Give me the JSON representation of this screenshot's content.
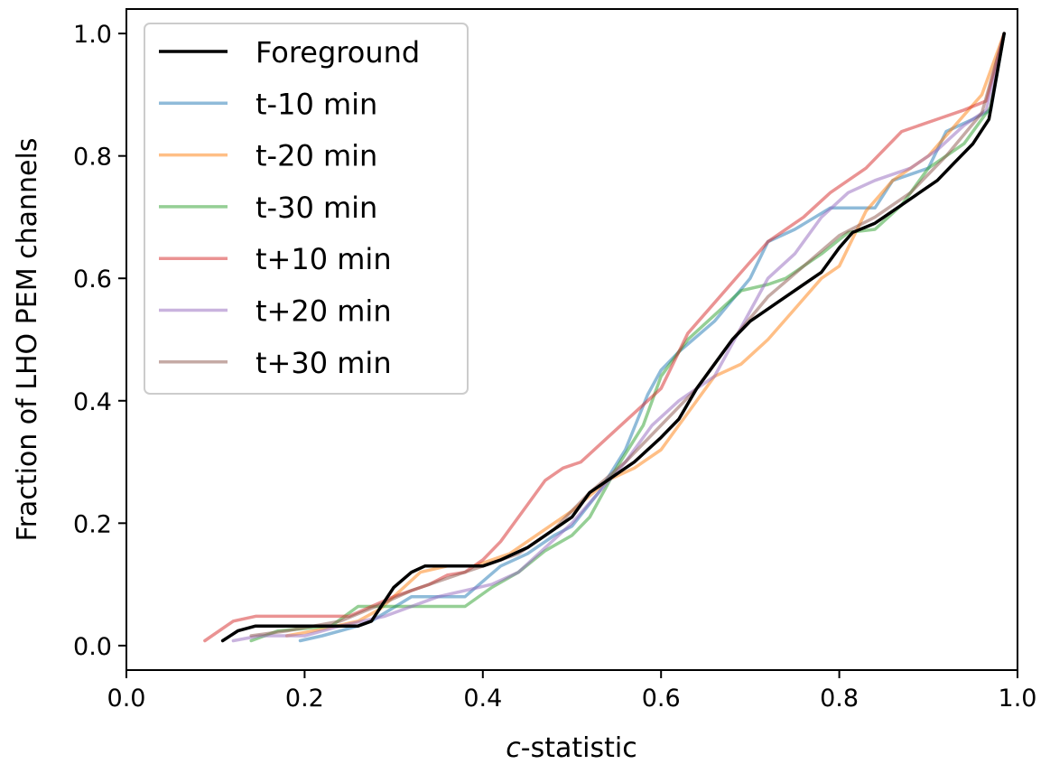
{
  "chart_data": {
    "type": "line",
    "title": "",
    "xlabel_italic": "c",
    "xlabel_rest": "-statistic",
    "ylabel": "Fraction of LHO PEM channels",
    "xlim": [
      0.0,
      1.0
    ],
    "ylim": [
      -0.04,
      1.04
    ],
    "xticks": [
      "0.0",
      "0.2",
      "0.4",
      "0.6",
      "0.8",
      "1.0"
    ],
    "yticks": [
      "0.0",
      "0.2",
      "0.4",
      "0.6",
      "0.8",
      "1.0"
    ],
    "grid": false,
    "legend_position": "top-left",
    "series": [
      {
        "name": "t-10 min",
        "color": "#1f77b4",
        "opacity": 0.5,
        "x": [
          0.195,
          0.22,
          0.26,
          0.275,
          0.32,
          0.38,
          0.42,
          0.45,
          0.48,
          0.5,
          0.53,
          0.56,
          0.585,
          0.6,
          0.62,
          0.66,
          0.7,
          0.72,
          0.75,
          0.79,
          0.84,
          0.86,
          0.9,
          0.92,
          0.95,
          0.97,
          0.985
        ],
        "y": [
          0.008,
          0.016,
          0.032,
          0.04,
          0.08,
          0.08,
          0.13,
          0.15,
          0.18,
          0.195,
          0.25,
          0.32,
          0.41,
          0.45,
          0.48,
          0.53,
          0.6,
          0.66,
          0.68,
          0.715,
          0.715,
          0.76,
          0.78,
          0.84,
          0.86,
          0.875,
          1.0
        ]
      },
      {
        "name": "t-20 min",
        "color": "#ff7f0e",
        "opacity": 0.5,
        "x": [
          0.18,
          0.21,
          0.26,
          0.285,
          0.33,
          0.36,
          0.39,
          0.43,
          0.47,
          0.5,
          0.54,
          0.57,
          0.6,
          0.62,
          0.66,
          0.69,
          0.72,
          0.75,
          0.78,
          0.8,
          0.83,
          0.86,
          0.9,
          0.93,
          0.96,
          0.985
        ],
        "y": [
          0.016,
          0.024,
          0.04,
          0.06,
          0.12,
          0.13,
          0.13,
          0.15,
          0.19,
          0.22,
          0.27,
          0.29,
          0.32,
          0.36,
          0.44,
          0.46,
          0.5,
          0.55,
          0.6,
          0.62,
          0.71,
          0.76,
          0.8,
          0.85,
          0.9,
          1.0
        ]
      },
      {
        "name": "t-30 min",
        "color": "#2ca02c",
        "opacity": 0.5,
        "x": [
          0.14,
          0.17,
          0.23,
          0.26,
          0.29,
          0.32,
          0.38,
          0.41,
          0.44,
          0.47,
          0.5,
          0.52,
          0.55,
          0.58,
          0.6,
          0.63,
          0.66,
          0.69,
          0.72,
          0.74,
          0.78,
          0.81,
          0.84,
          0.87,
          0.9,
          0.94,
          0.97,
          0.985
        ],
        "y": [
          0.008,
          0.024,
          0.032,
          0.064,
          0.064,
          0.064,
          0.064,
          0.095,
          0.12,
          0.155,
          0.18,
          0.21,
          0.29,
          0.36,
          0.44,
          0.5,
          0.54,
          0.58,
          0.59,
          0.6,
          0.64,
          0.675,
          0.68,
          0.72,
          0.78,
          0.82,
          0.88,
          1.0
        ]
      },
      {
        "name": "t+10 min",
        "color": "#d62728",
        "opacity": 0.5,
        "x": [
          0.088,
          0.12,
          0.145,
          0.18,
          0.25,
          0.3,
          0.34,
          0.36,
          0.38,
          0.4,
          0.42,
          0.45,
          0.47,
          0.49,
          0.51,
          0.54,
          0.57,
          0.6,
          0.63,
          0.66,
          0.69,
          0.72,
          0.76,
          0.79,
          0.83,
          0.87,
          0.91,
          0.94,
          0.965,
          0.985
        ],
        "y": [
          0.008,
          0.04,
          0.048,
          0.048,
          0.048,
          0.08,
          0.1,
          0.115,
          0.12,
          0.14,
          0.17,
          0.23,
          0.27,
          0.29,
          0.3,
          0.34,
          0.38,
          0.42,
          0.51,
          0.56,
          0.61,
          0.66,
          0.7,
          0.74,
          0.78,
          0.84,
          0.86,
          0.875,
          0.89,
          1.0
        ]
      },
      {
        "name": "t+20 min",
        "color": "#9467bd",
        "opacity": 0.5,
        "x": [
          0.12,
          0.15,
          0.2,
          0.24,
          0.29,
          0.32,
          0.35,
          0.38,
          0.41,
          0.44,
          0.47,
          0.5,
          0.53,
          0.56,
          0.59,
          0.62,
          0.66,
          0.69,
          0.72,
          0.75,
          0.78,
          0.81,
          0.84,
          0.88,
          0.91,
          0.94,
          0.965,
          0.985
        ],
        "y": [
          0.008,
          0.016,
          0.016,
          0.032,
          0.048,
          0.064,
          0.08,
          0.09,
          0.1,
          0.12,
          0.16,
          0.2,
          0.25,
          0.3,
          0.36,
          0.4,
          0.44,
          0.52,
          0.6,
          0.64,
          0.7,
          0.74,
          0.76,
          0.78,
          0.81,
          0.85,
          0.875,
          1.0
        ]
      },
      {
        "name": "t+30 min",
        "color": "#8c564b",
        "opacity": 0.5,
        "x": [
          0.14,
          0.18,
          0.24,
          0.28,
          0.32,
          0.36,
          0.4,
          0.44,
          0.48,
          0.52,
          0.56,
          0.6,
          0.64,
          0.68,
          0.72,
          0.76,
          0.8,
          0.84,
          0.88,
          0.92,
          0.96,
          0.985
        ],
        "y": [
          0.016,
          0.024,
          0.04,
          0.064,
          0.09,
          0.11,
          0.13,
          0.15,
          0.19,
          0.25,
          0.3,
          0.36,
          0.42,
          0.5,
          0.57,
          0.62,
          0.67,
          0.7,
          0.74,
          0.8,
          0.87,
          1.0
        ]
      },
      {
        "name": "Foreground",
        "color": "#000000",
        "opacity": 1.0,
        "x": [
          0.108,
          0.125,
          0.145,
          0.2,
          0.24,
          0.26,
          0.275,
          0.3,
          0.32,
          0.335,
          0.36,
          0.4,
          0.42,
          0.45,
          0.47,
          0.5,
          0.52,
          0.55,
          0.57,
          0.6,
          0.62,
          0.64,
          0.665,
          0.68,
          0.7,
          0.73,
          0.76,
          0.78,
          0.8,
          0.815,
          0.84,
          0.87,
          0.91,
          0.93,
          0.95,
          0.968,
          0.985
        ],
        "y": [
          0.008,
          0.024,
          0.032,
          0.032,
          0.032,
          0.032,
          0.04,
          0.095,
          0.12,
          0.13,
          0.13,
          0.13,
          0.14,
          0.16,
          0.18,
          0.21,
          0.25,
          0.28,
          0.3,
          0.34,
          0.37,
          0.42,
          0.47,
          0.5,
          0.53,
          0.56,
          0.59,
          0.61,
          0.65,
          0.675,
          0.69,
          0.72,
          0.76,
          0.79,
          0.82,
          0.86,
          1.0
        ]
      }
    ],
    "legend_order": [
      "Foreground",
      "t-10 min",
      "t-20 min",
      "t-30 min",
      "t+10 min",
      "t+20 min",
      "t+30 min"
    ]
  }
}
